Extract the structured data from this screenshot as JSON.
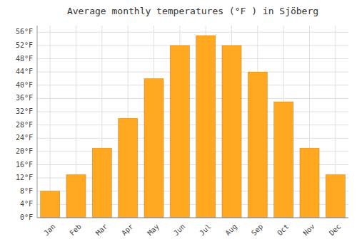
{
  "chart_data": {
    "type": "bar",
    "title": "Average monthly temperatures (°F ) in Sjöberg",
    "categories": [
      "Jan",
      "Feb",
      "Mar",
      "Apr",
      "May",
      "Jun",
      "Jul",
      "Aug",
      "Sep",
      "Oct",
      "Nov",
      "Dec"
    ],
    "values": [
      8,
      13,
      21,
      30,
      42,
      52,
      55,
      52,
      44,
      35,
      21,
      13
    ],
    "color": "#FFA820",
    "ylim": [
      0,
      58
    ],
    "yticks": [
      {
        "value": 0,
        "label": "0°F"
      },
      {
        "value": 4,
        "label": "4°F"
      },
      {
        "value": 8,
        "label": "8°F"
      },
      {
        "value": 12,
        "label": "12°F"
      },
      {
        "value": 16,
        "label": "16°F"
      },
      {
        "value": 20,
        "label": "20°F"
      },
      {
        "value": 24,
        "label": "24°F"
      },
      {
        "value": 28,
        "label": "28°F"
      },
      {
        "value": 32,
        "label": "32°F"
      },
      {
        "value": 36,
        "label": "36°F"
      },
      {
        "value": 40,
        "label": "40°F"
      },
      {
        "value": 44,
        "label": "44°F"
      },
      {
        "value": 48,
        "label": "48°F"
      },
      {
        "value": 52,
        "label": "52°F"
      },
      {
        "value": 56,
        "label": "56°F"
      }
    ],
    "grid": true
  }
}
